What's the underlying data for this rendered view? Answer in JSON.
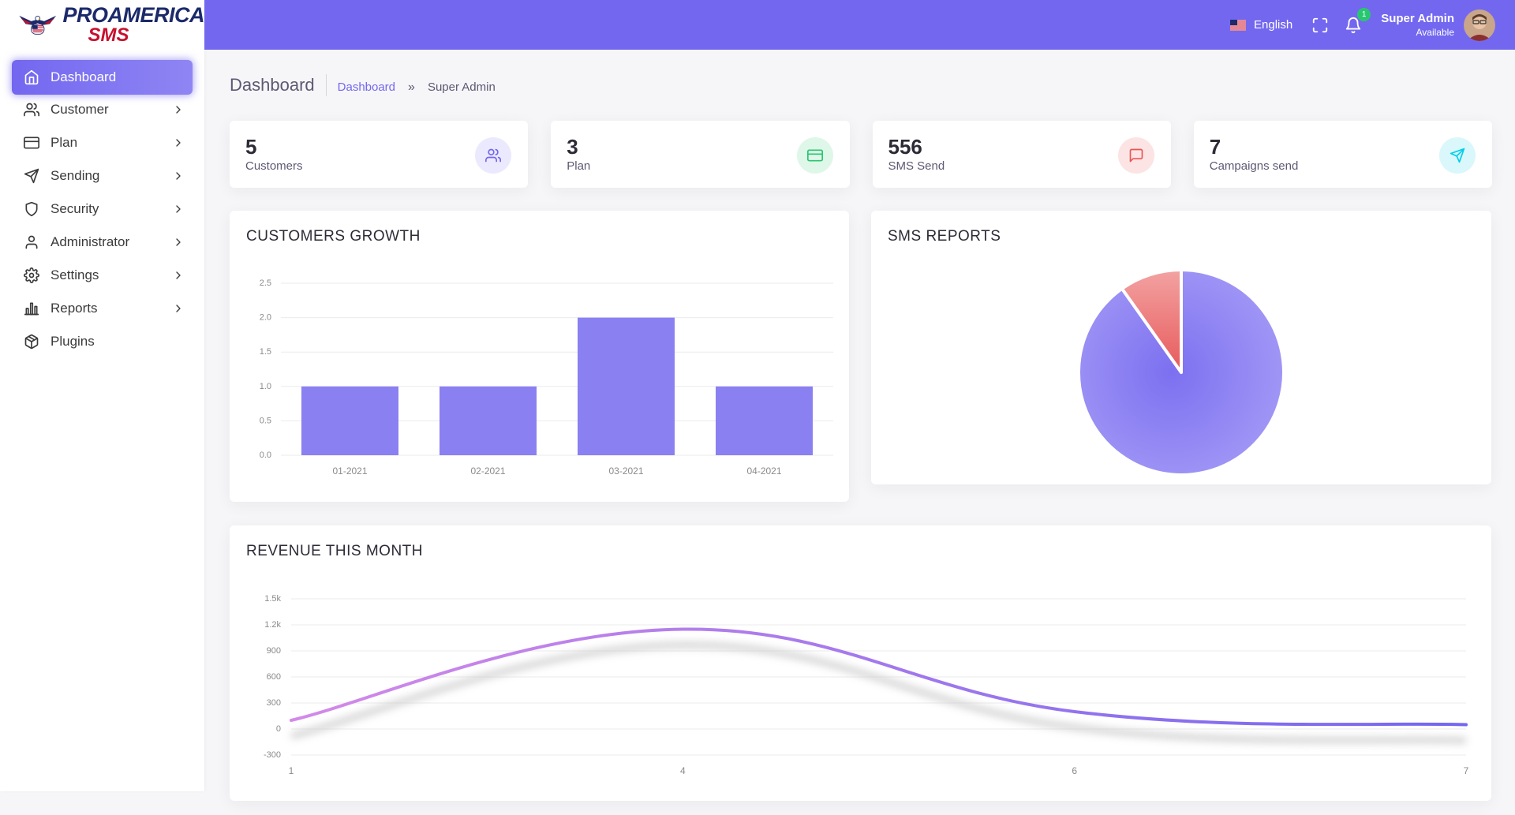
{
  "brand": {
    "line1": "PROAMERICA",
    "line2": "SMS"
  },
  "sidebar": {
    "items": [
      {
        "label": "Dashboard",
        "icon": "home-icon",
        "chevron": false,
        "active": true
      },
      {
        "label": "Customer",
        "icon": "users-icon",
        "chevron": true
      },
      {
        "label": "Plan",
        "icon": "credit-card-icon",
        "chevron": true
      },
      {
        "label": "Sending",
        "icon": "send-icon",
        "chevron": true
      },
      {
        "label": "Security",
        "icon": "shield-icon",
        "chevron": true
      },
      {
        "label": "Administrator",
        "icon": "user-icon",
        "chevron": true
      },
      {
        "label": "Settings",
        "icon": "gear-icon",
        "chevron": true
      },
      {
        "label": "Reports",
        "icon": "bar-chart-icon",
        "chevron": true
      },
      {
        "label": "Plugins",
        "icon": "package-icon",
        "chevron": false
      }
    ]
  },
  "topbar": {
    "language": "English",
    "notification_count": "1",
    "user_name": "Super Admin",
    "user_status": "Available"
  },
  "page": {
    "title": "Dashboard",
    "breadcrumb_link": "Dashboard",
    "breadcrumb_sep": "»",
    "breadcrumb_current": "Super Admin"
  },
  "stats": [
    {
      "value": "5",
      "label": "Customers",
      "icon": "users-icon",
      "color": "#7367f0",
      "bg": "#ebe9fd"
    },
    {
      "value": "3",
      "label": "Plan",
      "icon": "credit-card-icon",
      "color": "#28c76f",
      "bg": "#dff7e9"
    },
    {
      "value": "556",
      "label": "SMS Send",
      "icon": "message-icon",
      "color": "#ea5455",
      "bg": "#fce4e4"
    },
    {
      "value": "7",
      "label": "Campaigns send",
      "icon": "send-icon",
      "color": "#00cfe8",
      "bg": "#daf7fb"
    }
  ],
  "cards": {
    "growth": "CUSTOMERS GROWTH",
    "sms": "SMS REPORTS",
    "revenue": "REVENUE THIS MONTH"
  },
  "chart_data": [
    {
      "type": "bar",
      "title": "CUSTOMERS GROWTH",
      "categories": [
        "01-2021",
        "02-2021",
        "03-2021",
        "04-2021"
      ],
      "values": [
        1,
        1,
        2,
        1
      ],
      "ylim": [
        0,
        2.5
      ],
      "yticks": [
        "0.0",
        "0.5",
        "1.0",
        "1.5",
        "2.0",
        "2.5"
      ],
      "color": "#8a80f1",
      "grid": true
    },
    {
      "type": "pie",
      "title": "SMS REPORTS",
      "slices": [
        {
          "value": 90.2,
          "color": "#8f85f3"
        },
        {
          "value": 9.8,
          "color": "#ea6a6b"
        }
      ]
    },
    {
      "type": "line",
      "title": "REVENUE THIS MONTH",
      "x": [
        "1",
        "4",
        "6",
        "7"
      ],
      "values": [
        100,
        1150,
        200,
        50
      ],
      "ylim": [
        -300,
        1500
      ],
      "yticks": [
        "-300",
        "0",
        "300",
        "600",
        "900",
        "1.2k",
        "1.5k"
      ],
      "colors": [
        "#d38ae8",
        "#7367f0"
      ],
      "grid": true
    }
  ]
}
